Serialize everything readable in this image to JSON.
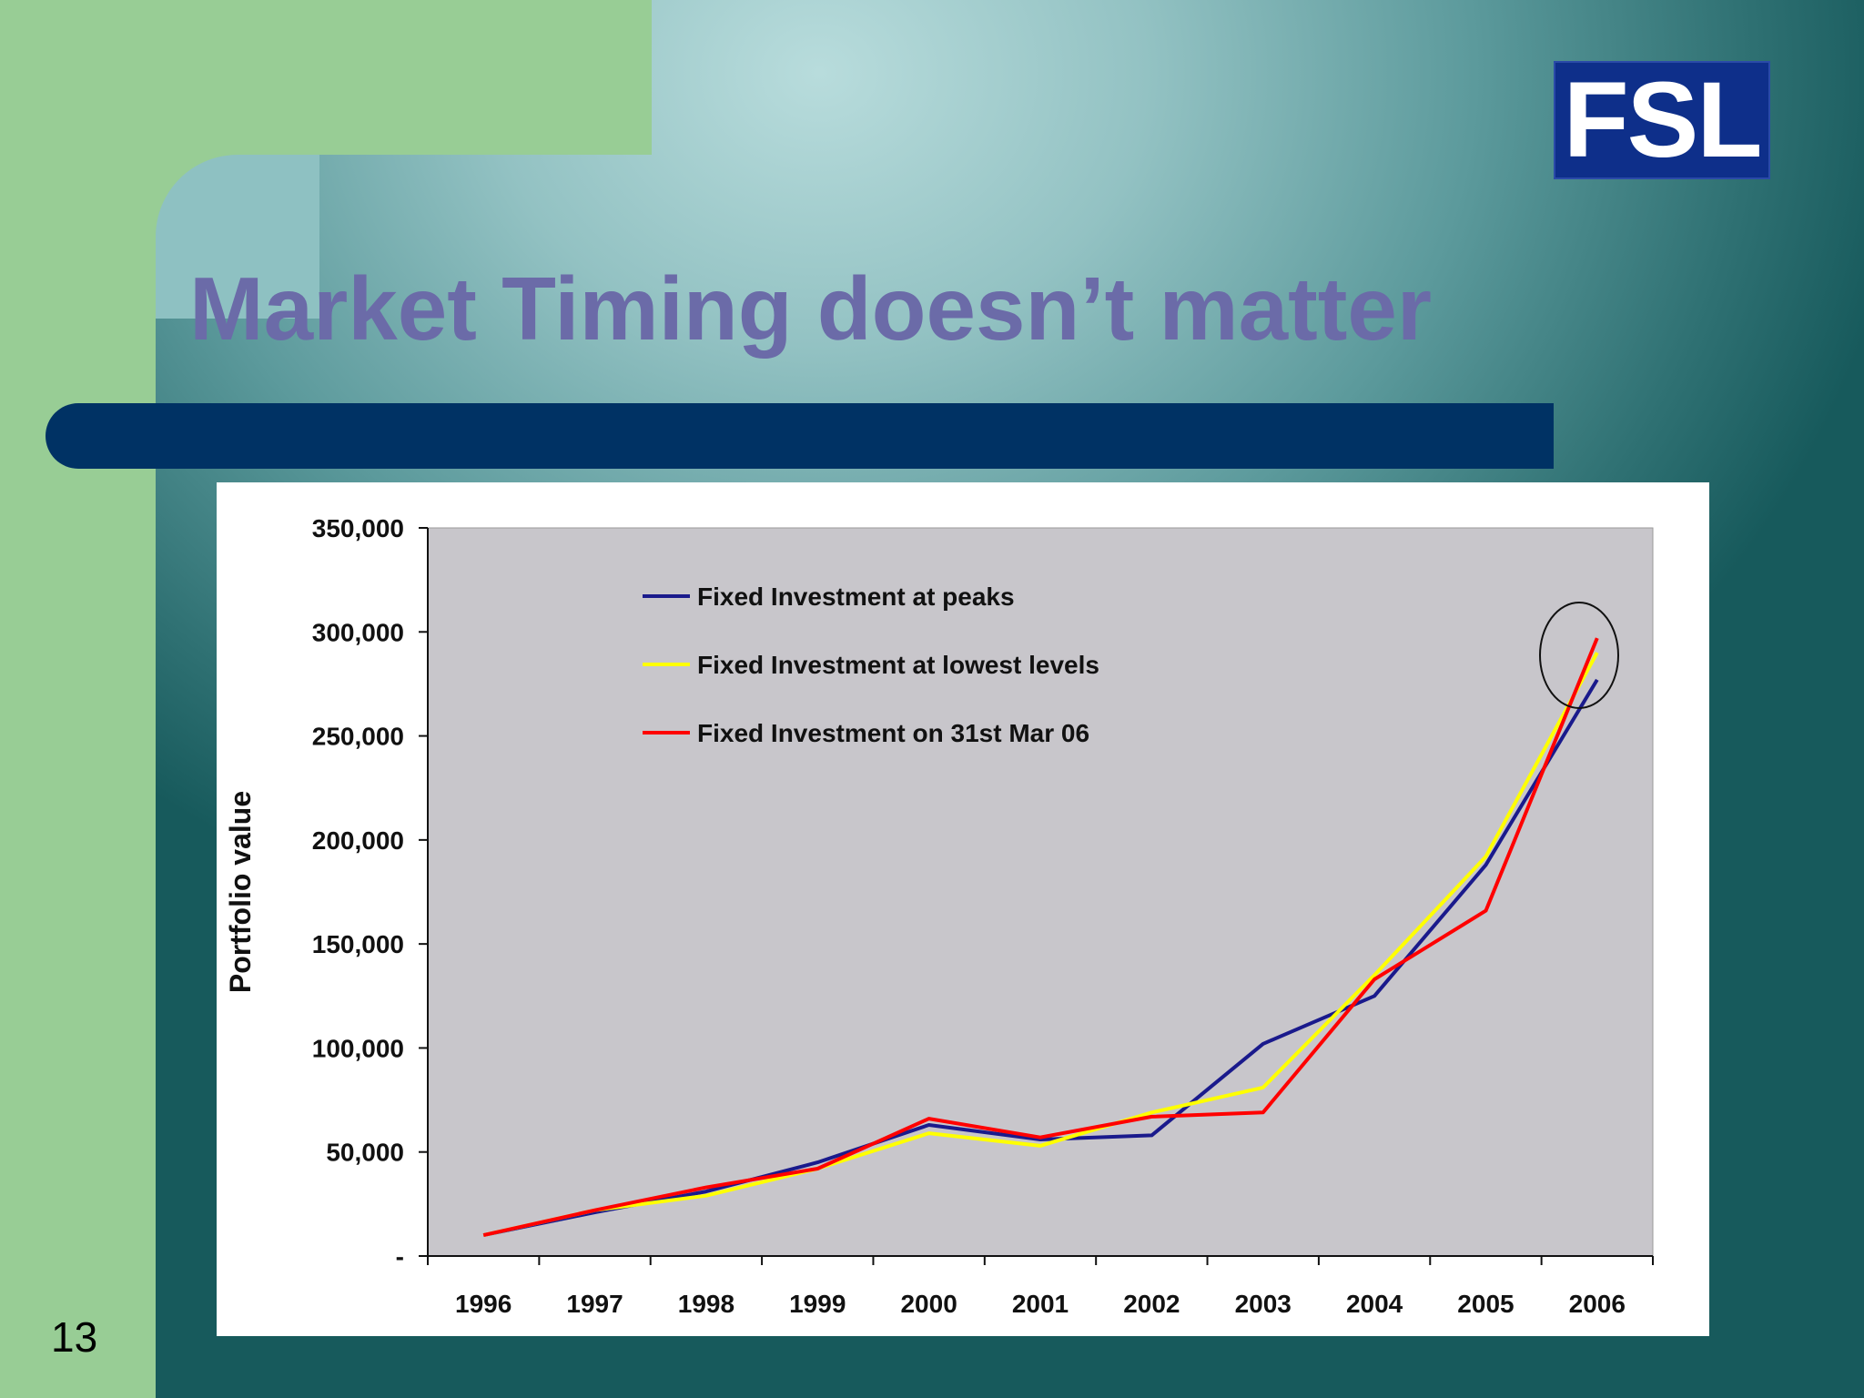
{
  "slide": {
    "title": "Market Timing doesn’t  matter",
    "logo_text": "FSL",
    "page_number": "13"
  },
  "colors": {
    "title": "#6b6ba8",
    "bar": "#003264",
    "green_panel": "#98cd95",
    "plot_bg": "#c8c6cb",
    "peaks": "#1a1a8c",
    "lowest": "#ffff00",
    "march": "#ff0000"
  },
  "chart_data": {
    "type": "line",
    "x": [
      "1996",
      "1997",
      "1998",
      "1999",
      "2000",
      "2001",
      "2002",
      "2003",
      "2004",
      "2005",
      "2006"
    ],
    "ylabel": "Portfolio value",
    "ylim": [
      0,
      350000
    ],
    "yticks": [
      0,
      50000,
      100000,
      150000,
      200000,
      250000,
      300000,
      350000
    ],
    "ytick_labels": [
      "-",
      "50,000",
      "100,000",
      "150,000",
      "200,000",
      "250,000",
      "300,000",
      "350,000"
    ],
    "grid": false,
    "legend_position": "top-left",
    "series": [
      {
        "name": "Fixed Investment at peaks",
        "color": "#1a1a8c",
        "values": [
          10000,
          21000,
          31000,
          45000,
          63000,
          56000,
          58000,
          102000,
          125000,
          188000,
          277000
        ]
      },
      {
        "name": "Fixed Investment at lowest levels",
        "color": "#ffff00",
        "values": [
          10000,
          22000,
          29000,
          42000,
          59000,
          53000,
          69000,
          81000,
          135000,
          192000,
          290000
        ]
      },
      {
        "name": "Fixed Investment on 31st Mar 06",
        "color": "#ff0000",
        "values": [
          10000,
          22000,
          33000,
          42000,
          66000,
          57000,
          67000,
          69000,
          133000,
          166000,
          297000
        ]
      }
    ]
  }
}
